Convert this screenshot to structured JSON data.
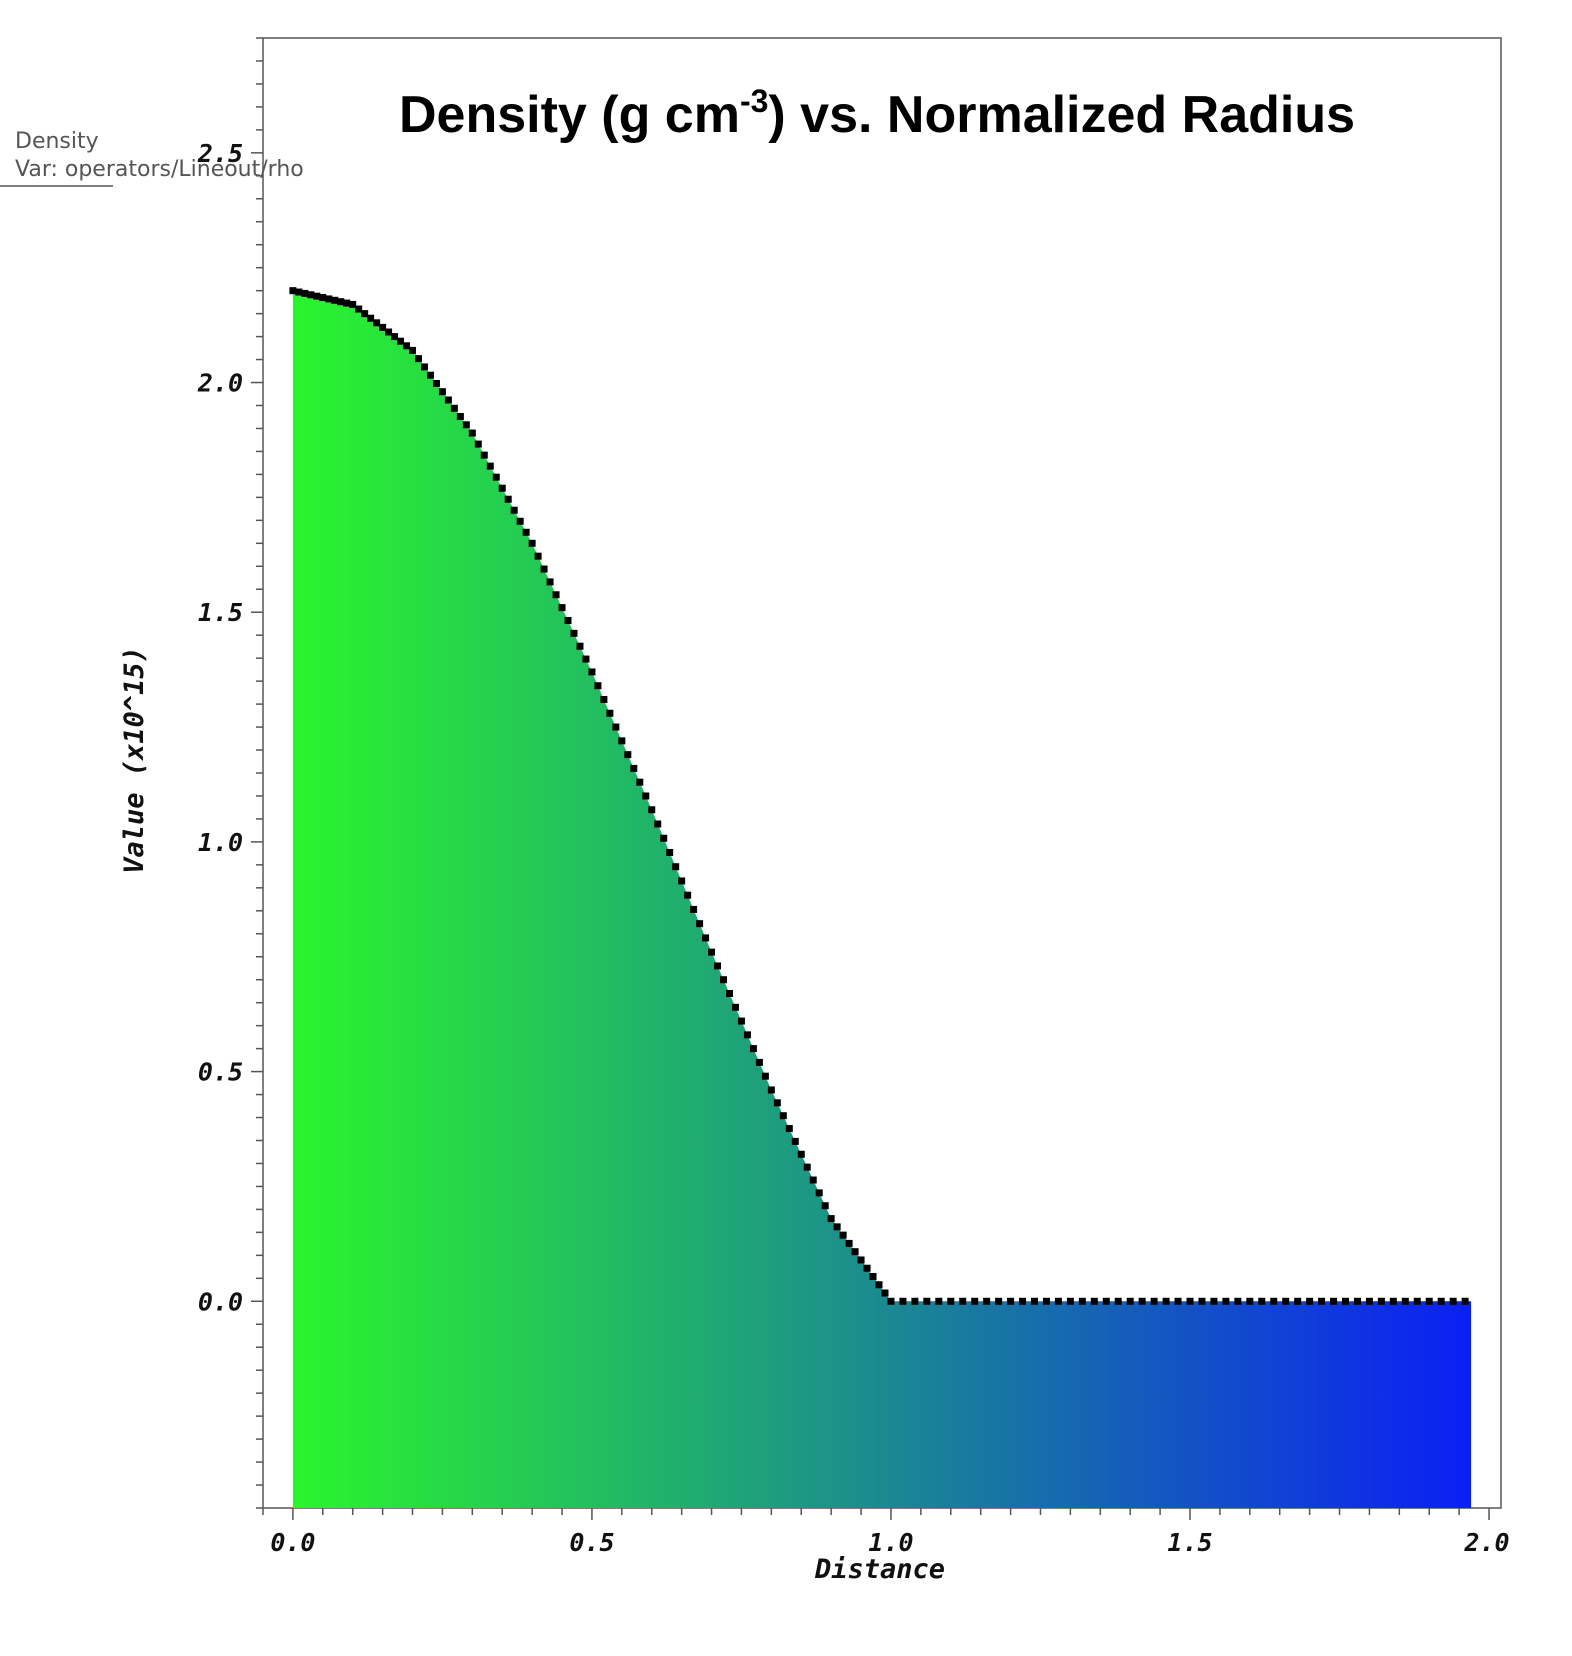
{
  "chart_data": {
    "type": "area",
    "title": {
      "main": "Density (g cm",
      "superscript": "-3",
      "suffix": ") vs. Normalized Radius"
    },
    "xlabel": "Distance",
    "ylabel": "Value (x10^15)",
    "xlim": [
      -0.05,
      2.02
    ],
    "ylim": [
      -0.45,
      2.75
    ],
    "x_ticks": [
      "0.0",
      "0.5",
      "1.0",
      "1.5",
      "2.0"
    ],
    "y_ticks": [
      "0.0",
      "0.5",
      "1.0",
      "1.5",
      "2.0",
      "2.5"
    ],
    "legend": {
      "line1": "Density",
      "line2": "Var: operators/Lineout/rho",
      "placement": "top-left"
    },
    "fill_gradient": {
      "start": "#2af52c",
      "end": "#0b1ff5"
    },
    "marker_color": "#000000",
    "series": [
      {
        "x": [
          0.0,
          0.1,
          0.2,
          0.3,
          0.4,
          0.5,
          0.6,
          0.7,
          0.8,
          0.9,
          1.0,
          1.2,
          1.4,
          1.6,
          1.8,
          1.97
        ],
        "values": [
          2.2,
          2.17,
          2.07,
          1.89,
          1.65,
          1.37,
          1.07,
          0.76,
          0.46,
          0.18,
          0.0,
          0.0,
          0.0,
          0.0,
          0.0,
          0.0
        ]
      }
    ]
  }
}
